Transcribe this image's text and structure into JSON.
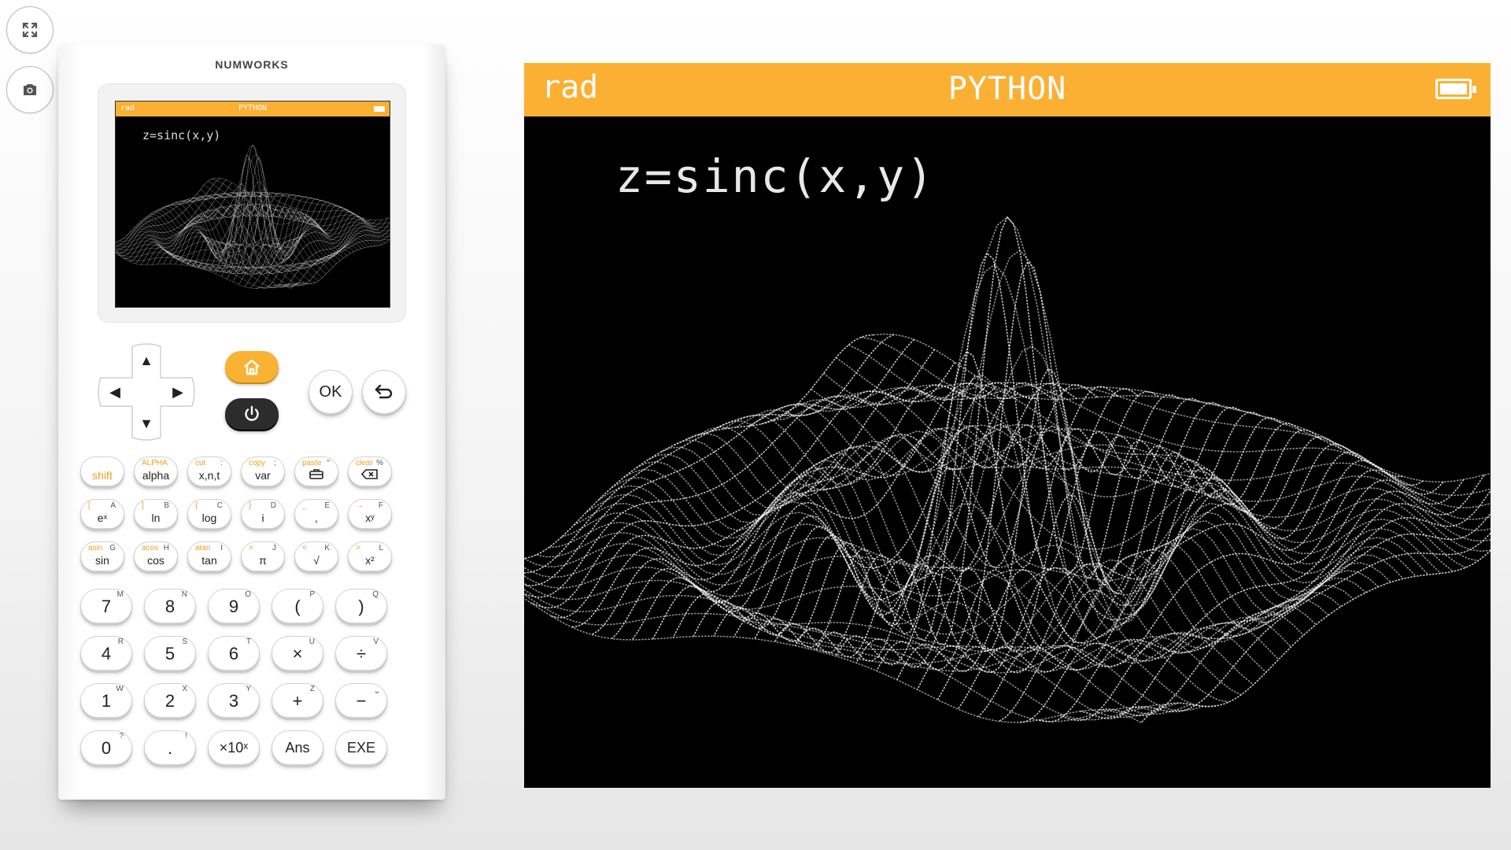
{
  "toolbar": {
    "fullscreen_icon": "fullscreen-icon",
    "screenshot_icon": "camera-icon"
  },
  "calculator": {
    "brand": "NUMWORKS",
    "mini_screen": {
      "angle_mode": "rad",
      "app_title": "PYTHON",
      "equation": "z=sinc(x,y)"
    },
    "nav": {
      "up": "▲",
      "down": "▼",
      "left": "◀",
      "right": "▶",
      "ok_label": "OK",
      "home_icon": "home-icon",
      "power_icon": "power-icon",
      "back_icon": "back-arrow-icon"
    },
    "function_keys": [
      [
        {
          "main": "shift",
          "alt": "",
          "letter": ""
        },
        {
          "main": "alpha",
          "alt": "ALPHA",
          "letter": ""
        },
        {
          "main": "x,n,t",
          "alt": "cut",
          "letter": ":"
        },
        {
          "main": "var",
          "alt": "copy",
          "letter": ";"
        },
        {
          "main": "toolbox-icon",
          "alt": "paste",
          "letter": "\""
        },
        {
          "main": "backspace-icon",
          "alt": "clear",
          "letter": "%"
        }
      ],
      [
        {
          "main": "eˣ",
          "alt": "[",
          "letter": "A"
        },
        {
          "main": "ln",
          "alt": "]",
          "letter": "B"
        },
        {
          "main": "log",
          "alt": "{",
          "letter": "C"
        },
        {
          "main": "i",
          "alt": "}",
          "letter": "D"
        },
        {
          "main": ",",
          "alt": "_",
          "letter": "E"
        },
        {
          "main": "xʸ",
          "alt": "→",
          "letter": "F"
        }
      ],
      [
        {
          "main": "sin",
          "alt": "asin",
          "letter": "G"
        },
        {
          "main": "cos",
          "alt": "acos",
          "letter": "H"
        },
        {
          "main": "tan",
          "alt": "atan",
          "letter": "I"
        },
        {
          "main": "π",
          "alt": "=",
          "letter": "J"
        },
        {
          "main": "√",
          "alt": "<",
          "letter": "K"
        },
        {
          "main": "x²",
          "alt": ">",
          "letter": "L"
        }
      ]
    ],
    "number_keys": [
      [
        {
          "main": "7",
          "letter": "M"
        },
        {
          "main": "8",
          "letter": "N"
        },
        {
          "main": "9",
          "letter": "O"
        },
        {
          "main": "(",
          "letter": "P"
        },
        {
          "main": ")",
          "letter": "Q"
        }
      ],
      [
        {
          "main": "4",
          "letter": "R"
        },
        {
          "main": "5",
          "letter": "S"
        },
        {
          "main": "6",
          "letter": "T"
        },
        {
          "main": "×",
          "letter": "U"
        },
        {
          "main": "÷",
          "letter": "V"
        }
      ],
      [
        {
          "main": "1",
          "letter": "W"
        },
        {
          "main": "2",
          "letter": "X"
        },
        {
          "main": "3",
          "letter": "Y"
        },
        {
          "main": "+",
          "letter": "Z"
        },
        {
          "main": "−",
          "letter": "⎵"
        }
      ],
      [
        {
          "main": "0",
          "letter": "?"
        },
        {
          "main": ".",
          "letter": "!"
        },
        {
          "main": "×10ˣ",
          "letter": ""
        },
        {
          "main": "Ans",
          "letter": ""
        },
        {
          "main": "EXE",
          "letter": ""
        }
      ]
    ]
  },
  "main_screen": {
    "angle_mode": "rad",
    "app_title": "PYTHON",
    "equation": "z=sinc(x,y)",
    "battery_icon": "battery-icon"
  },
  "colors": {
    "accent": "#fbb034",
    "screen_bg": "#000000",
    "power": "#2c2c2c"
  }
}
